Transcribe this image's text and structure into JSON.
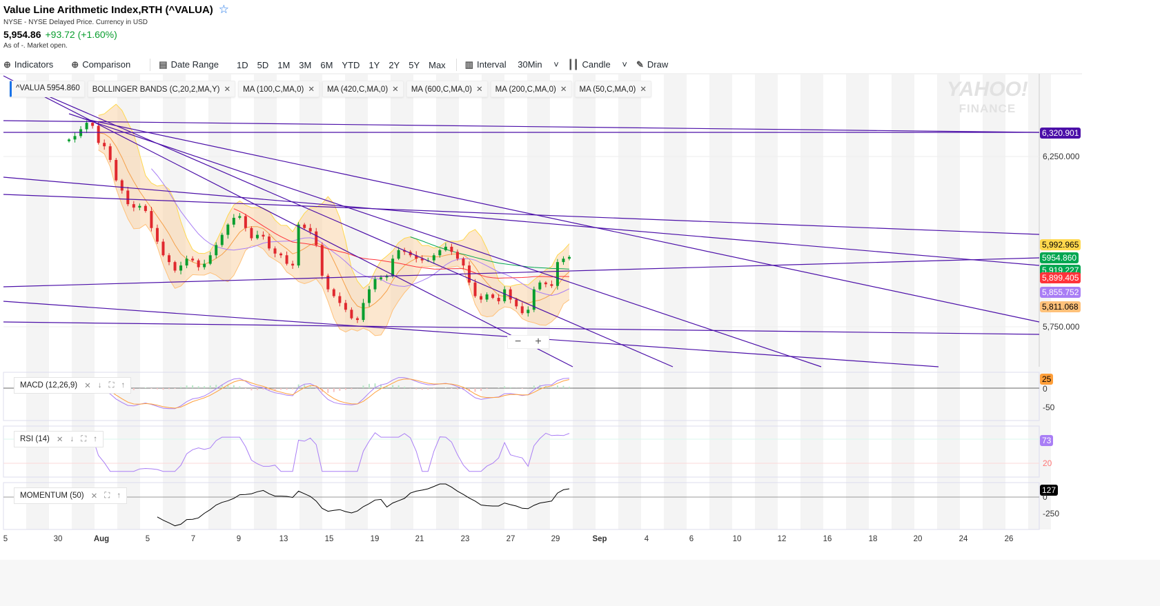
{
  "header": {
    "title": "Value Line Arithmetic Index,RTH (^VALUA)",
    "exchange": "NYSE - NYSE Delayed Price. Currency in USD",
    "price": "5,954.86",
    "change": "+93.72 (+1.60%)",
    "status": "As of -. Market open."
  },
  "toolbar": {
    "indicators": "Indicators",
    "comparison": "Comparison",
    "date_range": "Date Range",
    "ranges": [
      "1D",
      "5D",
      "1M",
      "3M",
      "6M",
      "YTD",
      "1Y",
      "2Y",
      "5Y",
      "Max"
    ],
    "interval": "Interval",
    "interval_value": "30Min",
    "chart_type": "Candle",
    "draw": "Draw"
  },
  "legend": [
    "^VALUA 5954.860",
    "BOLLINGER BANDS (C,20,2,MA,Y)",
    "MA (100,C,MA,0)",
    "MA (420,C,MA,0)",
    "MA (600,C,MA,0)",
    "MA (200,C,MA,0)",
    "MA (50,C,MA,0)"
  ],
  "watermark": {
    "line1": "YAHOO!",
    "line2": "FINANCE"
  },
  "price_labels": [
    {
      "text": "6,320.901",
      "color": "#4b0fa8",
      "value": 6320.901
    },
    {
      "text": "5,992.965",
      "color": "#ffd84d",
      "value": 5992.965
    },
    {
      "text": "5954.860",
      "color": "#00a650",
      "value": 5954.86
    },
    {
      "text": "5,919.227",
      "color": "#00a650",
      "value": 5919.227
    },
    {
      "text": "5,899.405",
      "color": "#ff333a",
      "value": 5899.405
    },
    {
      "text": "5,855.752",
      "color": "#a97ef5",
      "value": 5855.752
    },
    {
      "text": "5,811.068",
      "color": "#ffc17a",
      "value": 5811.068
    }
  ],
  "indicators": {
    "macd": {
      "label": "MACD (12,26,9)",
      "value": "25",
      "ticks": [
        "0",
        "-50"
      ]
    },
    "rsi": {
      "label": "RSI (14)",
      "value": "73",
      "ticks": [
        "20"
      ]
    },
    "momentum": {
      "label": "MOMENTUM (50)",
      "value": "127",
      "ticks": [
        "0",
        "-250"
      ]
    }
  },
  "chart_data": {
    "type": "candlestick",
    "title": "Value Line Arithmetic Index,RTH (^VALUA)",
    "y_ticks": [
      "6,250.000",
      "5,750.000"
    ],
    "ylim": [
      5635,
      6480
    ],
    "x_ticks": [
      "5",
      "30",
      "Aug",
      "5",
      "7",
      "9",
      "13",
      "15",
      "19",
      "21",
      "23",
      "27",
      "29",
      "Sep",
      "4",
      "6",
      "10",
      "12",
      "16",
      "18",
      "20",
      "24",
      "26"
    ],
    "close": [
      6300,
      6310,
      6330,
      6349,
      6340,
      6290,
      6280,
      6240,
      6180,
      6150,
      6110,
      6100,
      6105,
      6090,
      6040,
      6000,
      5960,
      5940,
      5915,
      5930,
      5950,
      5945,
      5925,
      5935,
      5960,
      5990,
      6020,
      6050,
      6070,
      6075,
      6040,
      6010,
      6020,
      6015,
      5980,
      5965,
      5960,
      5935,
      5930,
      6050,
      6040,
      6030,
      5990,
      5900,
      5860,
      5840,
      5820,
      5800,
      5775,
      5770,
      5820,
      5860,
      5890,
      5895,
      5900,
      5950,
      5975,
      5970,
      5960,
      5950,
      5945,
      5945,
      5960,
      5975,
      5985,
      5970,
      5950,
      5930,
      5880,
      5840,
      5830,
      5845,
      5835,
      5825,
      5860,
      5830,
      5810,
      5790,
      5800,
      5860,
      5880,
      5875,
      5870,
      5940,
      5950,
      5955
    ],
    "colors": {
      "up": "#0a9e2f",
      "down": "#e0282e",
      "bb": "#f5a04a",
      "ma100": "#ff333a",
      "ma50": "#a97ef5",
      "ma200": "#00a650",
      "trend": "#4b0fa8"
    }
  },
  "zoom_controls": {
    "minus": "−",
    "plus": "+"
  }
}
